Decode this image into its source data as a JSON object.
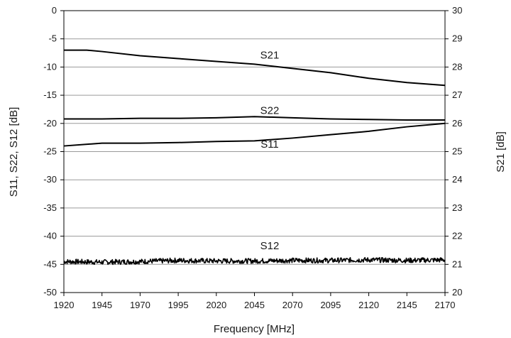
{
  "chart_data": {
    "type": "line",
    "xlabel": "Frequency [MHz]",
    "ylabel": "S11, S22, S12 [dB]",
    "y2label": "S21 [dB]",
    "xlim": [
      1920,
      2170
    ],
    "ylim": [
      -50,
      0
    ],
    "y2lim": [
      20,
      30
    ],
    "x_ticks": [
      1920,
      1945,
      1970,
      1995,
      2020,
      2045,
      2070,
      2095,
      2120,
      2145,
      2170
    ],
    "y_ticks": [
      0,
      -5,
      -10,
      -15,
      -20,
      -25,
      -30,
      -35,
      -40,
      -45,
      -50
    ],
    "y2_ticks": [
      30,
      29,
      28,
      27,
      26,
      25,
      24,
      23,
      22,
      21,
      20
    ],
    "grid": "horizontal",
    "line_color": "#000000",
    "series": [
      {
        "name": "S21",
        "axis": "right",
        "x": [
          1920,
          1935,
          1945,
          1970,
          1995,
          2020,
          2045,
          2070,
          2095,
          2120,
          2145,
          2170
        ],
        "y": [
          28.6,
          28.6,
          28.55,
          28.4,
          28.3,
          28.2,
          28.1,
          27.95,
          27.8,
          27.6,
          27.45,
          27.35
        ],
        "label_at": [
          2055,
          28.3
        ]
      },
      {
        "name": "S22",
        "axis": "left",
        "x": [
          1920,
          1945,
          1970,
          1995,
          2020,
          2045,
          2070,
          2095,
          2120,
          2145,
          2170
        ],
        "y": [
          -19.2,
          -19.2,
          -19.1,
          -19.1,
          -19.0,
          -18.8,
          -19.0,
          -19.2,
          -19.3,
          -19.4,
          -19.4
        ],
        "label_at": [
          2055,
          -18.3
        ]
      },
      {
        "name": "S11",
        "axis": "left",
        "x": [
          1920,
          1945,
          1970,
          1995,
          2020,
          2045,
          2070,
          2095,
          2120,
          2145,
          2170
        ],
        "y": [
          -24.0,
          -23.5,
          -23.5,
          -23.4,
          -23.2,
          -23.1,
          -22.6,
          -22.0,
          -21.4,
          -20.6,
          -20.0
        ],
        "label_at": [
          2055,
          -24.3
        ]
      },
      {
        "name": "S12",
        "axis": "left",
        "x": [
          1920,
          1945,
          1970,
          1995,
          2020,
          2045,
          2070,
          2095,
          2120,
          2145,
          2170
        ],
        "y": [
          -44.5,
          -44.6,
          -44.5,
          -44.3,
          -44.4,
          -44.4,
          -44.3,
          -44.3,
          -44.2,
          -44.3,
          -44.2
        ],
        "noise_db": 0.45,
        "label_at": [
          2055,
          -42.3
        ]
      }
    ]
  }
}
